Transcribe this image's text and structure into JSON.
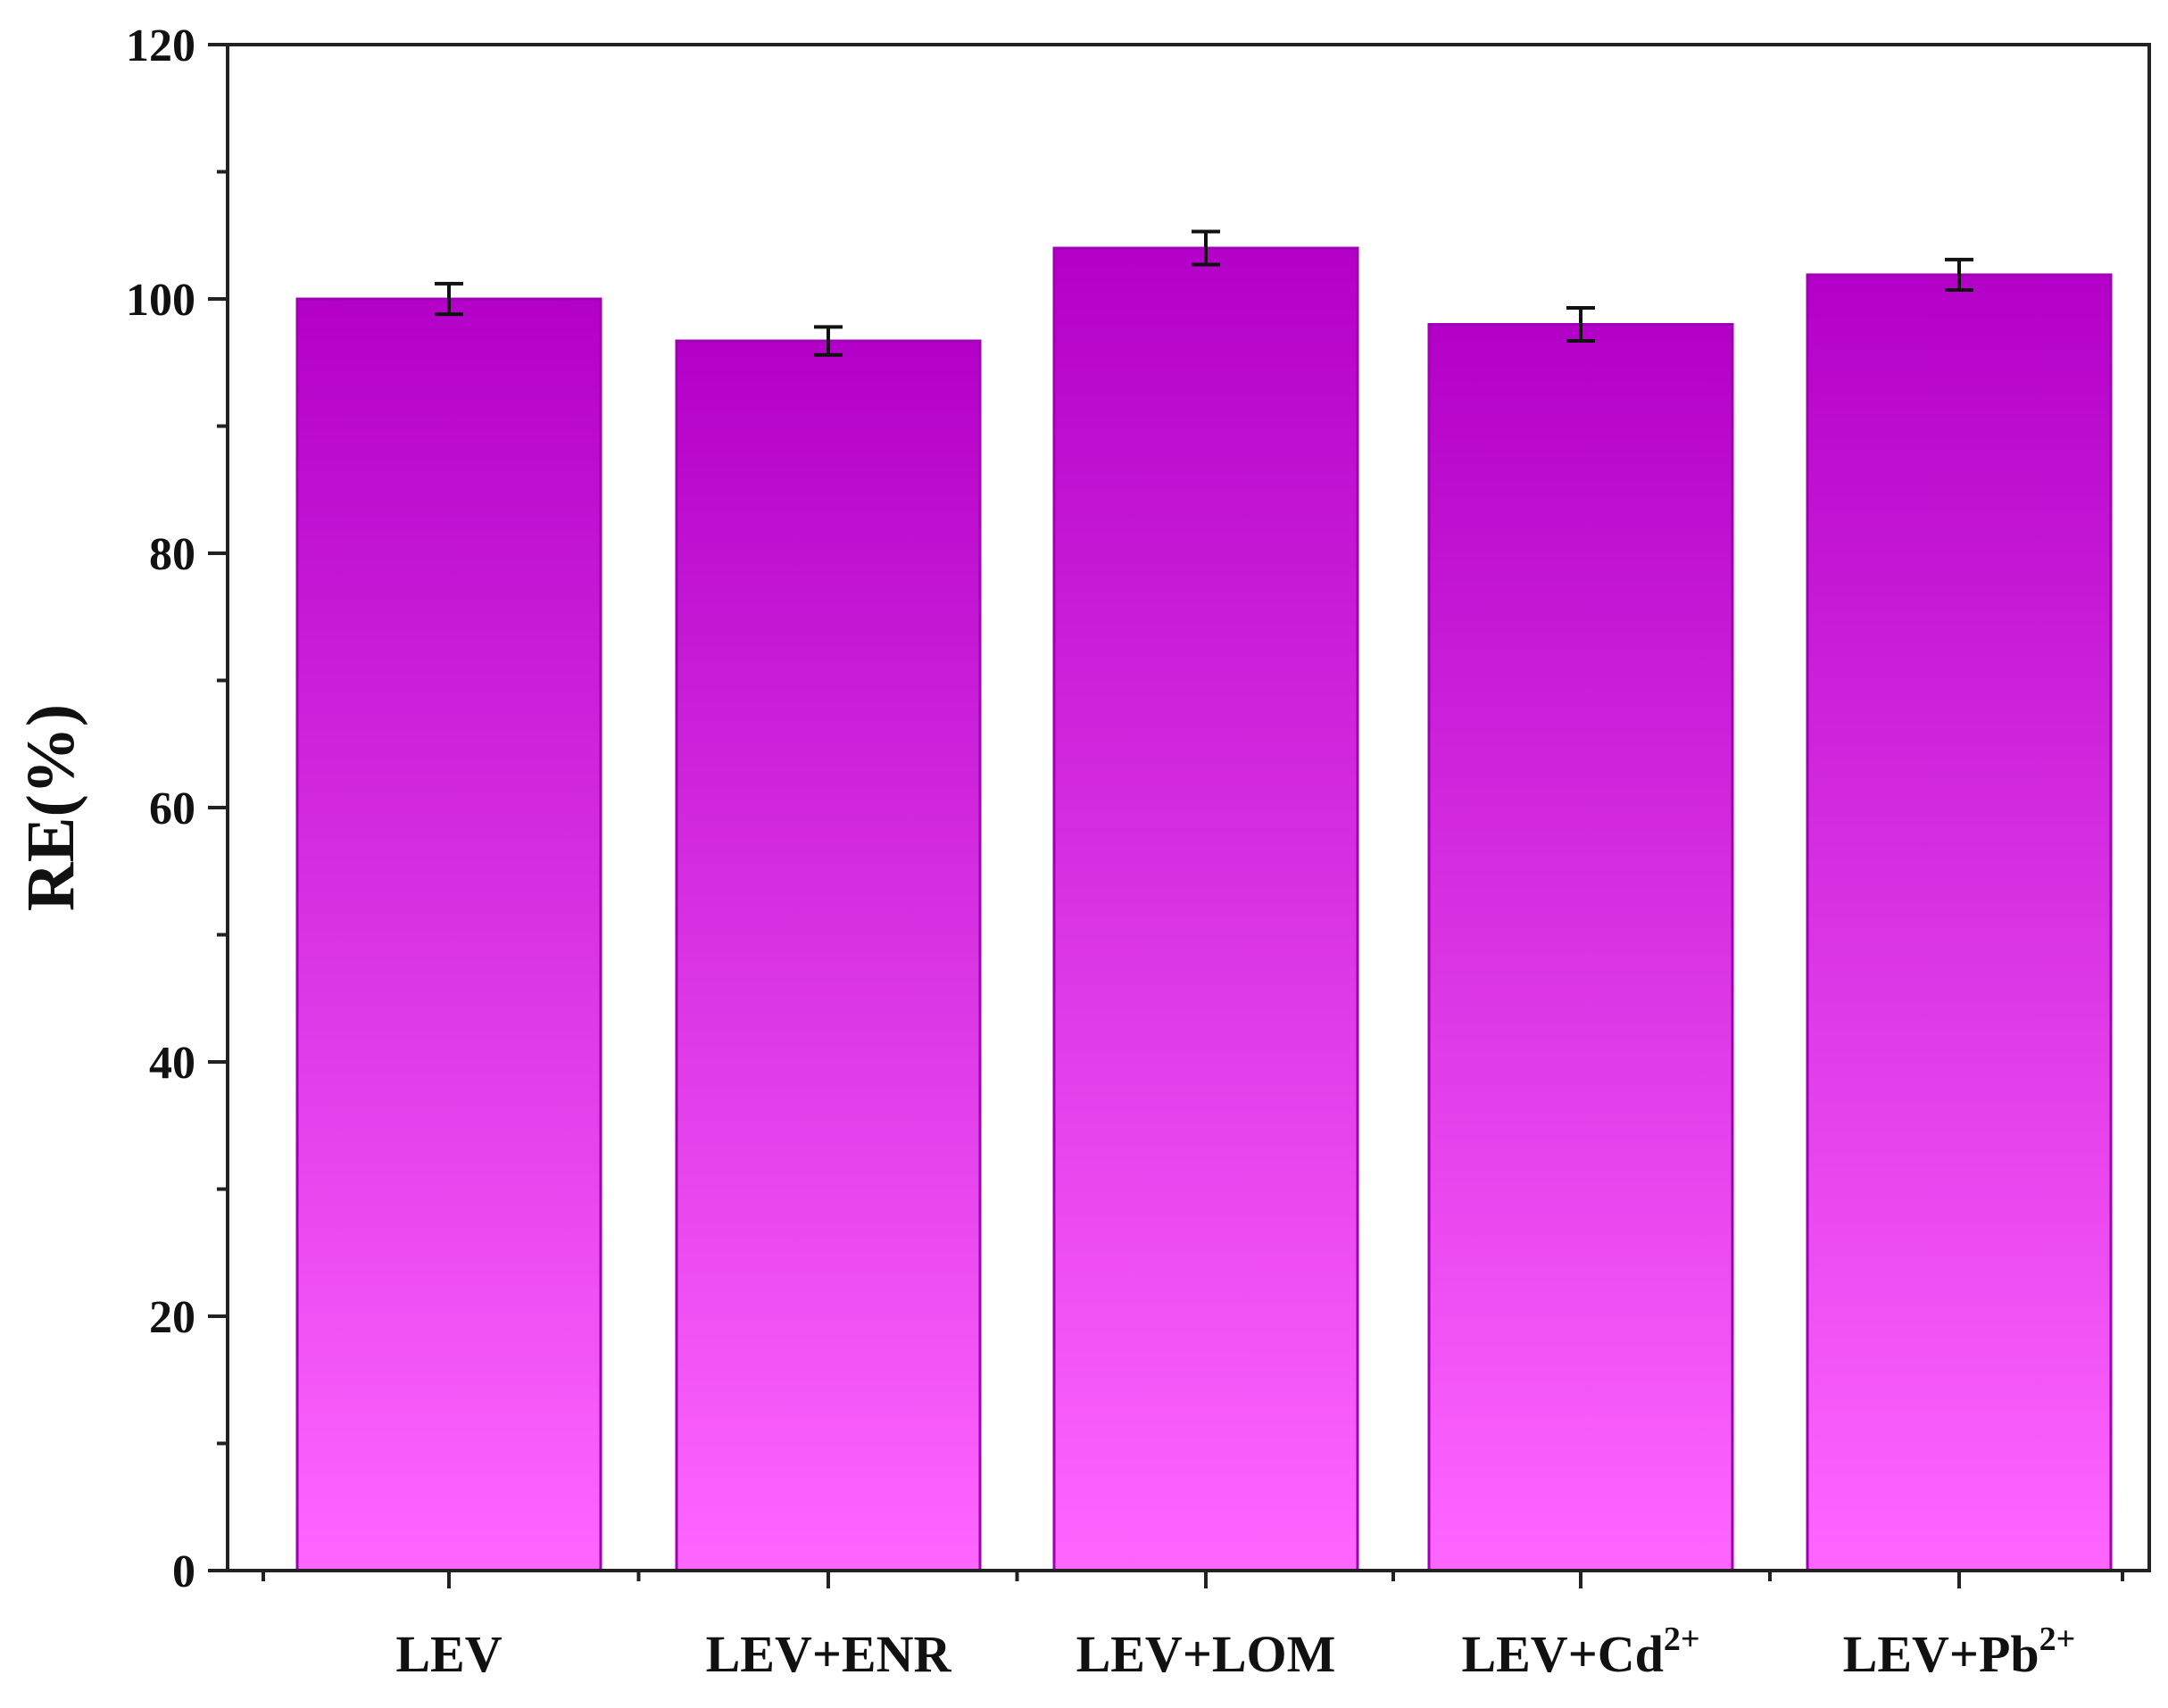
{
  "chart_data": {
    "type": "bar",
    "categories": [
      "LEV",
      "LEV+ENR",
      "LEV+LOM",
      "LEV+Cd2+",
      "LEV+Pb2+"
    ],
    "category_labels": [
      {
        "base": "LEV",
        "sup": ""
      },
      {
        "base": "LEV+ENR",
        "sup": ""
      },
      {
        "base": "LEV+LOM",
        "sup": ""
      },
      {
        "base": "LEV+Cd",
        "sup": "2+"
      },
      {
        "base": "LEV+Pb",
        "sup": "2+"
      }
    ],
    "values": [
      100.0,
      96.7,
      104.0,
      98.0,
      101.9
    ],
    "errors": [
      1.2,
      1.1,
      1.3,
      1.3,
      1.2
    ],
    "title": "",
    "xlabel": "",
    "ylabel": "RE(%)",
    "ylim": [
      0,
      120
    ],
    "yticks": [
      0,
      20,
      40,
      60,
      80,
      100,
      120
    ],
    "grid": false,
    "legend": "none",
    "colors": {
      "bar_top": "#b300c8",
      "bar_bottom": "#ff66ff",
      "bar_edge": "#a000b4",
      "axis": "#222222",
      "error_bar": "#111111"
    }
  }
}
